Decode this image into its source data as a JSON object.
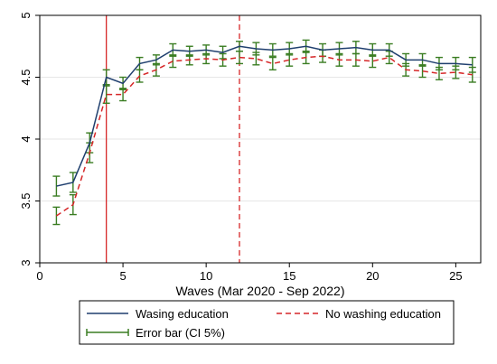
{
  "chart_data": {
    "type": "line",
    "xlabel": "Waves (Mar 2020 - Sep 2022)",
    "ylabel": "",
    "xlim": [
      0,
      26.5
    ],
    "ylim": [
      3,
      5
    ],
    "x_ticks": [
      0,
      5,
      10,
      15,
      20,
      25
    ],
    "y_ticks": [
      3,
      3.5,
      4,
      4.5,
      5
    ],
    "grid": "horizontal",
    "vertical_lines": [
      {
        "x": 4,
        "style": "solid",
        "color": "#d62728"
      },
      {
        "x": 12,
        "style": "dashed",
        "color": "#d62728"
      }
    ],
    "x": [
      1,
      2,
      3,
      4,
      5,
      6,
      7,
      8,
      9,
      10,
      11,
      12,
      13,
      14,
      15,
      16,
      17,
      18,
      19,
      20,
      21,
      22,
      23,
      24,
      25,
      26
    ],
    "series": [
      {
        "name": "Wasing education",
        "style": "solid",
        "color": "#1f3f6e",
        "values": [
          3.62,
          3.65,
          3.97,
          4.5,
          4.45,
          4.61,
          4.64,
          4.72,
          4.71,
          4.72,
          4.7,
          4.75,
          4.73,
          4.72,
          4.73,
          4.75,
          4.72,
          4.73,
          4.74,
          4.72,
          4.72,
          4.64,
          4.64,
          4.61,
          4.61,
          4.6
        ],
        "err": [
          0.08,
          0.08,
          0.08,
          0.06,
          0.05,
          0.05,
          0.04,
          0.05,
          0.04,
          0.04,
          0.05,
          0.04,
          0.05,
          0.05,
          0.05,
          0.05,
          0.05,
          0.05,
          0.05,
          0.05,
          0.05,
          0.05,
          0.05,
          0.05,
          0.05,
          0.06
        ]
      },
      {
        "name": "No washing education",
        "style": "dashed",
        "color": "#d62728",
        "values": [
          3.38,
          3.47,
          3.89,
          4.36,
          4.36,
          4.51,
          4.56,
          4.63,
          4.64,
          4.65,
          4.64,
          4.66,
          4.65,
          4.61,
          4.64,
          4.66,
          4.67,
          4.64,
          4.64,
          4.63,
          4.66,
          4.56,
          4.55,
          4.53,
          4.54,
          4.52
        ],
        "err": [
          0.07,
          0.08,
          0.08,
          0.07,
          0.05,
          0.05,
          0.05,
          0.05,
          0.04,
          0.04,
          0.05,
          0.05,
          0.05,
          0.05,
          0.05,
          0.05,
          0.05,
          0.05,
          0.05,
          0.05,
          0.05,
          0.05,
          0.05,
          0.05,
          0.05,
          0.06
        ]
      }
    ],
    "error_bar": {
      "name": "Error bar (CI 5%)",
      "color": "#3a7d22"
    },
    "legend": {
      "position": "bottom",
      "columns": 2
    }
  }
}
